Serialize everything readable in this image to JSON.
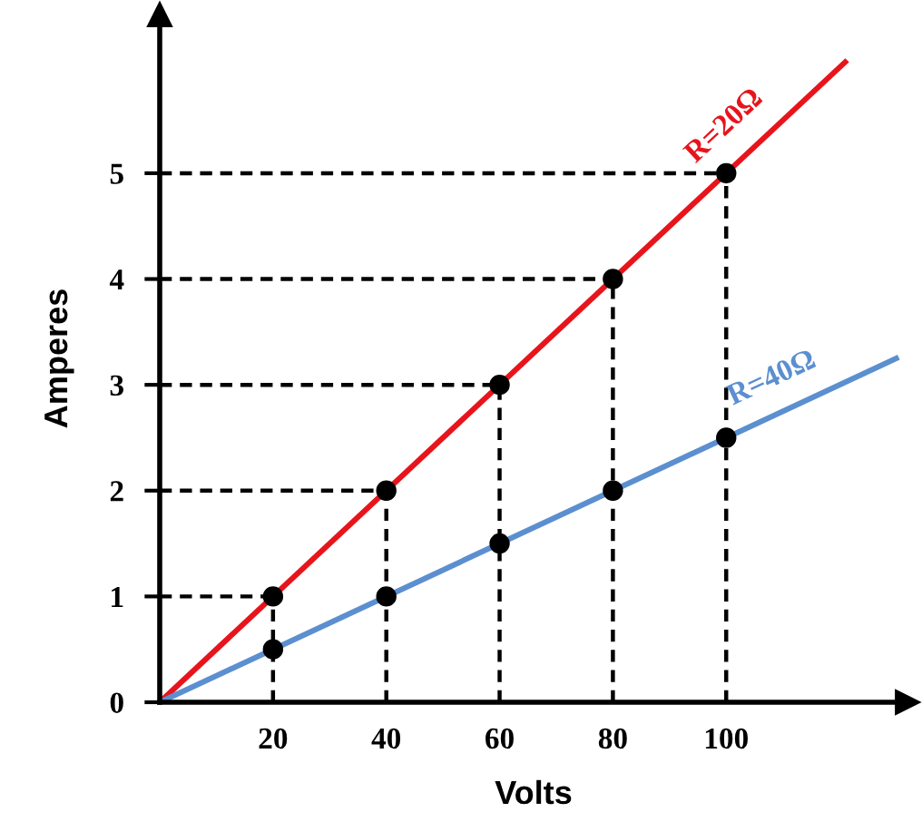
{
  "chart_data": {
    "type": "line",
    "xlabel": "Volts",
    "ylabel": "Amperes",
    "xlim": [
      0,
      132
    ],
    "ylim": [
      0,
      6.5
    ],
    "xticks": [
      20,
      40,
      60,
      80,
      100
    ],
    "yticks": [
      0,
      1,
      2,
      3,
      4,
      5
    ],
    "series": [
      {
        "name": "R=20Ω",
        "color": "#e8141c",
        "x": [
          0,
          121
        ],
        "values": [
          0,
          6.05
        ]
      },
      {
        "name": "R=40Ω",
        "color": "#5b8fd0",
        "x": [
          0,
          130
        ],
        "values": [
          0,
          3.25
        ]
      },
      {
        "type": "scatter",
        "color": "#000000",
        "marker": "circle",
        "x": [
          20,
          40,
          60,
          80,
          100
        ],
        "values": [
          1,
          2,
          3,
          4,
          5
        ]
      },
      {
        "type": "scatter",
        "color": "#000000",
        "marker": "circle",
        "x": [
          20,
          40,
          60,
          80,
          100
        ],
        "values": [
          0.5,
          1,
          1.5,
          2,
          2.5
        ]
      }
    ],
    "ref_lines": [
      {
        "axis": "x",
        "value": 20,
        "line_style": "dashed",
        "color": "#000000"
      },
      {
        "axis": "x",
        "value": 40,
        "line_style": "dashed",
        "color": "#000000"
      },
      {
        "axis": "x",
        "value": 60,
        "line_style": "dashed",
        "color": "#000000"
      },
      {
        "axis": "x",
        "value": 80,
        "line_style": "dashed",
        "color": "#000000"
      },
      {
        "axis": "x",
        "value": 100,
        "line_style": "dashed",
        "color": "#000000"
      },
      {
        "axis": "y",
        "value": 1,
        "line_style": "dashed",
        "color": "#000000"
      },
      {
        "axis": "y",
        "value": 2,
        "line_style": "dashed",
        "color": "#000000"
      },
      {
        "axis": "y",
        "value": 3,
        "line_style": "dashed",
        "color": "#000000"
      },
      {
        "axis": "y",
        "value": 4,
        "line_style": "dashed",
        "color": "#000000"
      },
      {
        "axis": "y",
        "value": 5,
        "line_style": "dashed",
        "color": "#000000"
      }
    ],
    "grid": false,
    "legend": false
  }
}
